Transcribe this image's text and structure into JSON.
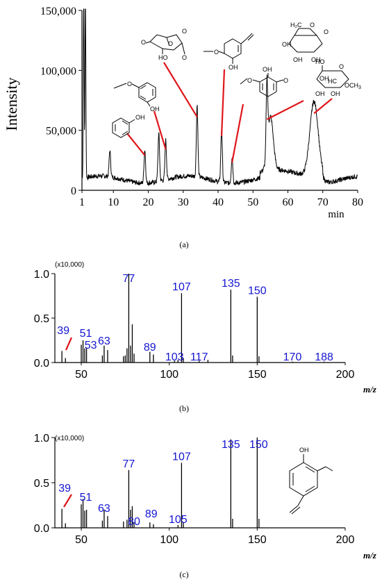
{
  "chart_data": [
    {
      "type": "line",
      "panel_label": "(a)",
      "ylabel": "Intensity",
      "xlabel": "min",
      "xlim": [
        1,
        80
      ],
      "ylim": [
        0,
        150000
      ],
      "x_ticks": [
        1,
        10,
        20,
        30,
        40,
        50,
        60,
        70,
        80
      ],
      "y_ticks": [
        0,
        50000,
        100000,
        150000
      ],
      "y_tick_labels": [
        "0",
        "50,000",
        "100,000",
        "150,000"
      ],
      "peaks": [
        {
          "x": 1.5,
          "y": 160000
        },
        {
          "x": 2.0,
          "y": 160000
        },
        {
          "x": 9,
          "y": 22000
        },
        {
          "x": 19,
          "y": 28000
        },
        {
          "x": 23,
          "y": 40000
        },
        {
          "x": 25,
          "y": 33000
        },
        {
          "x": 34,
          "y": 60000
        },
        {
          "x": 41,
          "y": 44000
        },
        {
          "x": 44,
          "y": 22000
        },
        {
          "x": 54,
          "y": 58000
        },
        {
          "x": 55,
          "y": 45000
        },
        {
          "x": 67.5,
          "y": 63000
        }
      ],
      "annotations": [
        {
          "x": 19,
          "compound": "phenol"
        },
        {
          "x": 25,
          "compound": "guaiacol"
        },
        {
          "x": 34,
          "compound": "levoglucosenone"
        },
        {
          "x": 41,
          "compound": "4-vinylguaiacol"
        },
        {
          "x": 44,
          "compound": "2,6-dimethoxyphenol"
        },
        {
          "x": 54,
          "compound": "levoglucosan"
        },
        {
          "x": 67.5,
          "compound": "methyl glucopyranoside"
        }
      ]
    },
    {
      "type": "bar",
      "panel_label": "(b)",
      "xlabel": "m/z",
      "scale_label": "(x10,000)",
      "xlim": [
        35,
        200
      ],
      "ylim": [
        0,
        1.0
      ],
      "x_ticks": [
        50,
        100,
        150,
        200
      ],
      "y_ticks": [
        0.0,
        0.5,
        1.0
      ],
      "y_tick_labels": [
        "0.0",
        "0.5",
        "1.0"
      ],
      "peaks": [
        {
          "mz": 39,
          "i": 0.13
        },
        {
          "mz": 41,
          "i": 0.05
        },
        {
          "mz": 50,
          "i": 0.2
        },
        {
          "mz": 51,
          "i": 0.25
        },
        {
          "mz": 52,
          "i": 0.16
        },
        {
          "mz": 53,
          "i": 0.16
        },
        {
          "mz": 62,
          "i": 0.08
        },
        {
          "mz": 63,
          "i": 0.19
        },
        {
          "mz": 65,
          "i": 0.14
        },
        {
          "mz": 74,
          "i": 0.07
        },
        {
          "mz": 75,
          "i": 0.08
        },
        {
          "mz": 76,
          "i": 0.16
        },
        {
          "mz": 77,
          "i": 1.0
        },
        {
          "mz": 78,
          "i": 0.19
        },
        {
          "mz": 79,
          "i": 0.43
        },
        {
          "mz": 80,
          "i": 0.1
        },
        {
          "mz": 89,
          "i": 0.12
        },
        {
          "mz": 91,
          "i": 0.09
        },
        {
          "mz": 103,
          "i": 0.02
        },
        {
          "mz": 105,
          "i": 0.03
        },
        {
          "mz": 107,
          "i": 0.78
        },
        {
          "mz": 108,
          "i": 0.05
        },
        {
          "mz": 117,
          "i": 0.02
        },
        {
          "mz": 122,
          "i": 0.03
        },
        {
          "mz": 135,
          "i": 0.82
        },
        {
          "mz": 136,
          "i": 0.08
        },
        {
          "mz": 150,
          "i": 0.74
        },
        {
          "mz": 151,
          "i": 0.07
        },
        {
          "mz": 170,
          "i": 0.01
        },
        {
          "mz": 188,
          "i": 0.01
        }
      ],
      "labels": [
        {
          "mz": 39,
          "text": "39"
        },
        {
          "mz": 51,
          "text": "51"
        },
        {
          "mz": 53,
          "text": "53"
        },
        {
          "mz": 63,
          "text": "63"
        },
        {
          "mz": 77,
          "text": "77"
        },
        {
          "mz": 89,
          "text": "89"
        },
        {
          "mz": 103,
          "text": "103"
        },
        {
          "mz": 117,
          "text": "117"
        },
        {
          "mz": 107,
          "text": "107"
        },
        {
          "mz": 135,
          "text": "135"
        },
        {
          "mz": 150,
          "text": "150"
        },
        {
          "mz": 170,
          "text": "170"
        },
        {
          "mz": 188,
          "text": "188"
        }
      ]
    },
    {
      "type": "bar",
      "panel_label": "(c)",
      "xlabel": "m/z",
      "scale_label": "(x10,000)",
      "xlim": [
        35,
        200
      ],
      "ylim": [
        0,
        1.0
      ],
      "x_ticks": [
        50,
        100,
        150,
        200
      ],
      "y_ticks": [
        0.0,
        0.5,
        1.0
      ],
      "y_tick_labels": [
        "0.0",
        "0.5",
        "1.0"
      ],
      "peaks": [
        {
          "mz": 39,
          "i": 0.21
        },
        {
          "mz": 41,
          "i": 0.05
        },
        {
          "mz": 50,
          "i": 0.26
        },
        {
          "mz": 51,
          "i": 0.32
        },
        {
          "mz": 52,
          "i": 0.19
        },
        {
          "mz": 53,
          "i": 0.2
        },
        {
          "mz": 62,
          "i": 0.08
        },
        {
          "mz": 63,
          "i": 0.2
        },
        {
          "mz": 65,
          "i": 0.13
        },
        {
          "mz": 74,
          "i": 0.07
        },
        {
          "mz": 76,
          "i": 0.09
        },
        {
          "mz": 77,
          "i": 0.64
        },
        {
          "mz": 78,
          "i": 0.2
        },
        {
          "mz": 79,
          "i": 0.24
        },
        {
          "mz": 80,
          "i": 0.06
        },
        {
          "mz": 89,
          "i": 0.06
        },
        {
          "mz": 91,
          "i": 0.04
        },
        {
          "mz": 105,
          "i": 0.03
        },
        {
          "mz": 107,
          "i": 0.72
        },
        {
          "mz": 108,
          "i": 0.06
        },
        {
          "mz": 135,
          "i": 0.98
        },
        {
          "mz": 136,
          "i": 0.1
        },
        {
          "mz": 150,
          "i": 1.0
        },
        {
          "mz": 151,
          "i": 0.1
        }
      ],
      "labels": [
        {
          "mz": 39,
          "text": "39"
        },
        {
          "mz": 51,
          "text": "51"
        },
        {
          "mz": 63,
          "text": "63"
        },
        {
          "mz": 77,
          "text": "77"
        },
        {
          "mz": 80,
          "text": "80"
        },
        {
          "mz": 89,
          "text": "89"
        },
        {
          "mz": 105,
          "text": "105"
        },
        {
          "mz": 107,
          "text": "107"
        },
        {
          "mz": 135,
          "text": "135"
        },
        {
          "mz": 150,
          "text": "150"
        }
      ]
    }
  ],
  "structure_labels": {
    "oh": "OH",
    "o": "O",
    "hc": "HC",
    "och3": "OCH",
    "och3_sub": "3",
    "h2c": "H₂C",
    "ho": "HO"
  }
}
